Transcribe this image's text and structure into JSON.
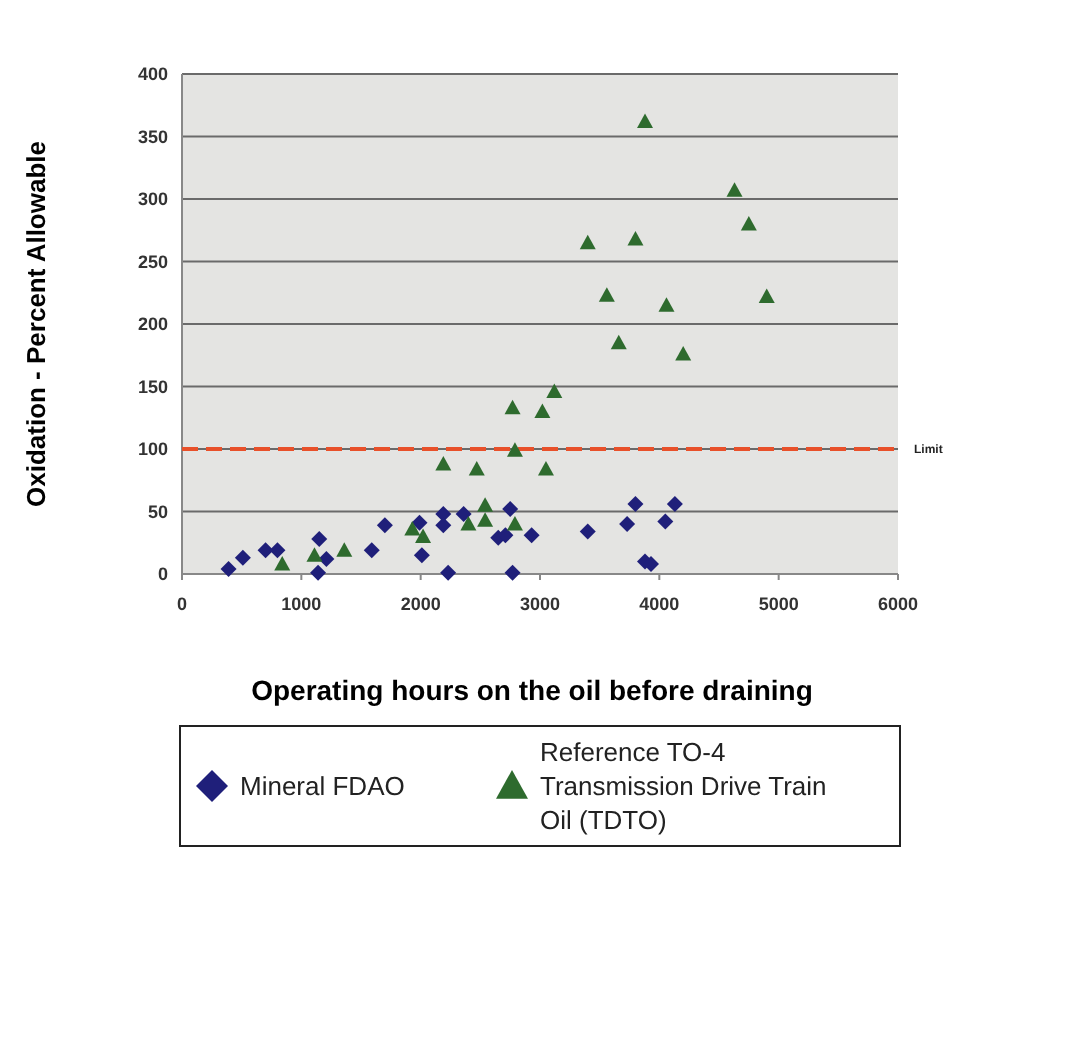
{
  "chart_data": {
    "type": "scatter",
    "xlabel": "Operating hours on the oil before draining",
    "ylabel": "Oxidation - Percent Allowable",
    "xlim": [
      0,
      6000
    ],
    "xticks": [
      0,
      1000,
      2000,
      3000,
      4000,
      5000,
      6000
    ],
    "ylim": [
      0,
      400
    ],
    "yticks": [
      0,
      50,
      100,
      150,
      200,
      250,
      300,
      350,
      400
    ],
    "grid": "y",
    "legend": "bottom",
    "ref_lines": [
      {
        "axis": "y",
        "value": 100,
        "label": "Limit",
        "color": "#e8502a",
        "line_style": "dashed"
      }
    ],
    "series": [
      {
        "name": "Mineral FDAO",
        "color": "#1f1f7a",
        "marker": "diamond",
        "x": [
          390,
          510,
          700,
          800,
          1150,
          1210,
          1140,
          1590,
          1700,
          1990,
          2010,
          2190,
          2190,
          2230,
          2360,
          2650,
          2710,
          2750,
          2770,
          2930,
          3400,
          3730,
          4050,
          3880,
          3930,
          3800,
          4130
        ],
        "values": [
          4,
          13,
          19,
          19,
          28,
          12,
          1,
          19,
          39,
          41,
          15,
          48,
          39,
          1,
          48,
          29,
          31,
          52,
          1,
          31,
          34,
          40,
          42,
          10,
          8,
          56,
          56
        ]
      },
      {
        "name": "Reference TO-4 Transmission Drive Train Oil (TDTO)",
        "color": "#2e6b2e",
        "marker": "triangle",
        "x": [
          840,
          1110,
          1360,
          1930,
          2020,
          2190,
          2470,
          2400,
          2540,
          2540,
          2770,
          2790,
          2790,
          3020,
          3050,
          3120,
          3400,
          3560,
          3660,
          3800,
          3880,
          4630,
          4750,
          4060,
          4900,
          4200
        ],
        "values": [
          8,
          15,
          19,
          36,
          30,
          88,
          84,
          40,
          55,
          43,
          133,
          99,
          40,
          130,
          84,
          146,
          265,
          223,
          185,
          268,
          362,
          307,
          280,
          215,
          222,
          176
        ]
      }
    ]
  }
}
